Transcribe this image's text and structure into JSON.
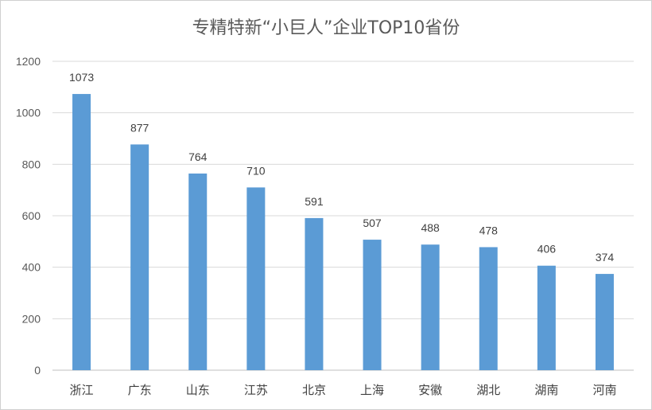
{
  "chart_data": {
    "type": "bar",
    "title": "专精特新“小巨人”企业TOP10省份",
    "categories": [
      "浙江",
      "广东",
      "山东",
      "江苏",
      "北京",
      "上海",
      "安徽",
      "湖北",
      "湖南",
      "河南"
    ],
    "values": [
      1073,
      877,
      764,
      710,
      591,
      507,
      488,
      478,
      406,
      374
    ],
    "ylim": [
      0,
      1200
    ],
    "yticks": [
      0,
      200,
      400,
      600,
      800,
      1000,
      1200
    ],
    "grid": true,
    "bar_color": "#5b9bd5"
  }
}
